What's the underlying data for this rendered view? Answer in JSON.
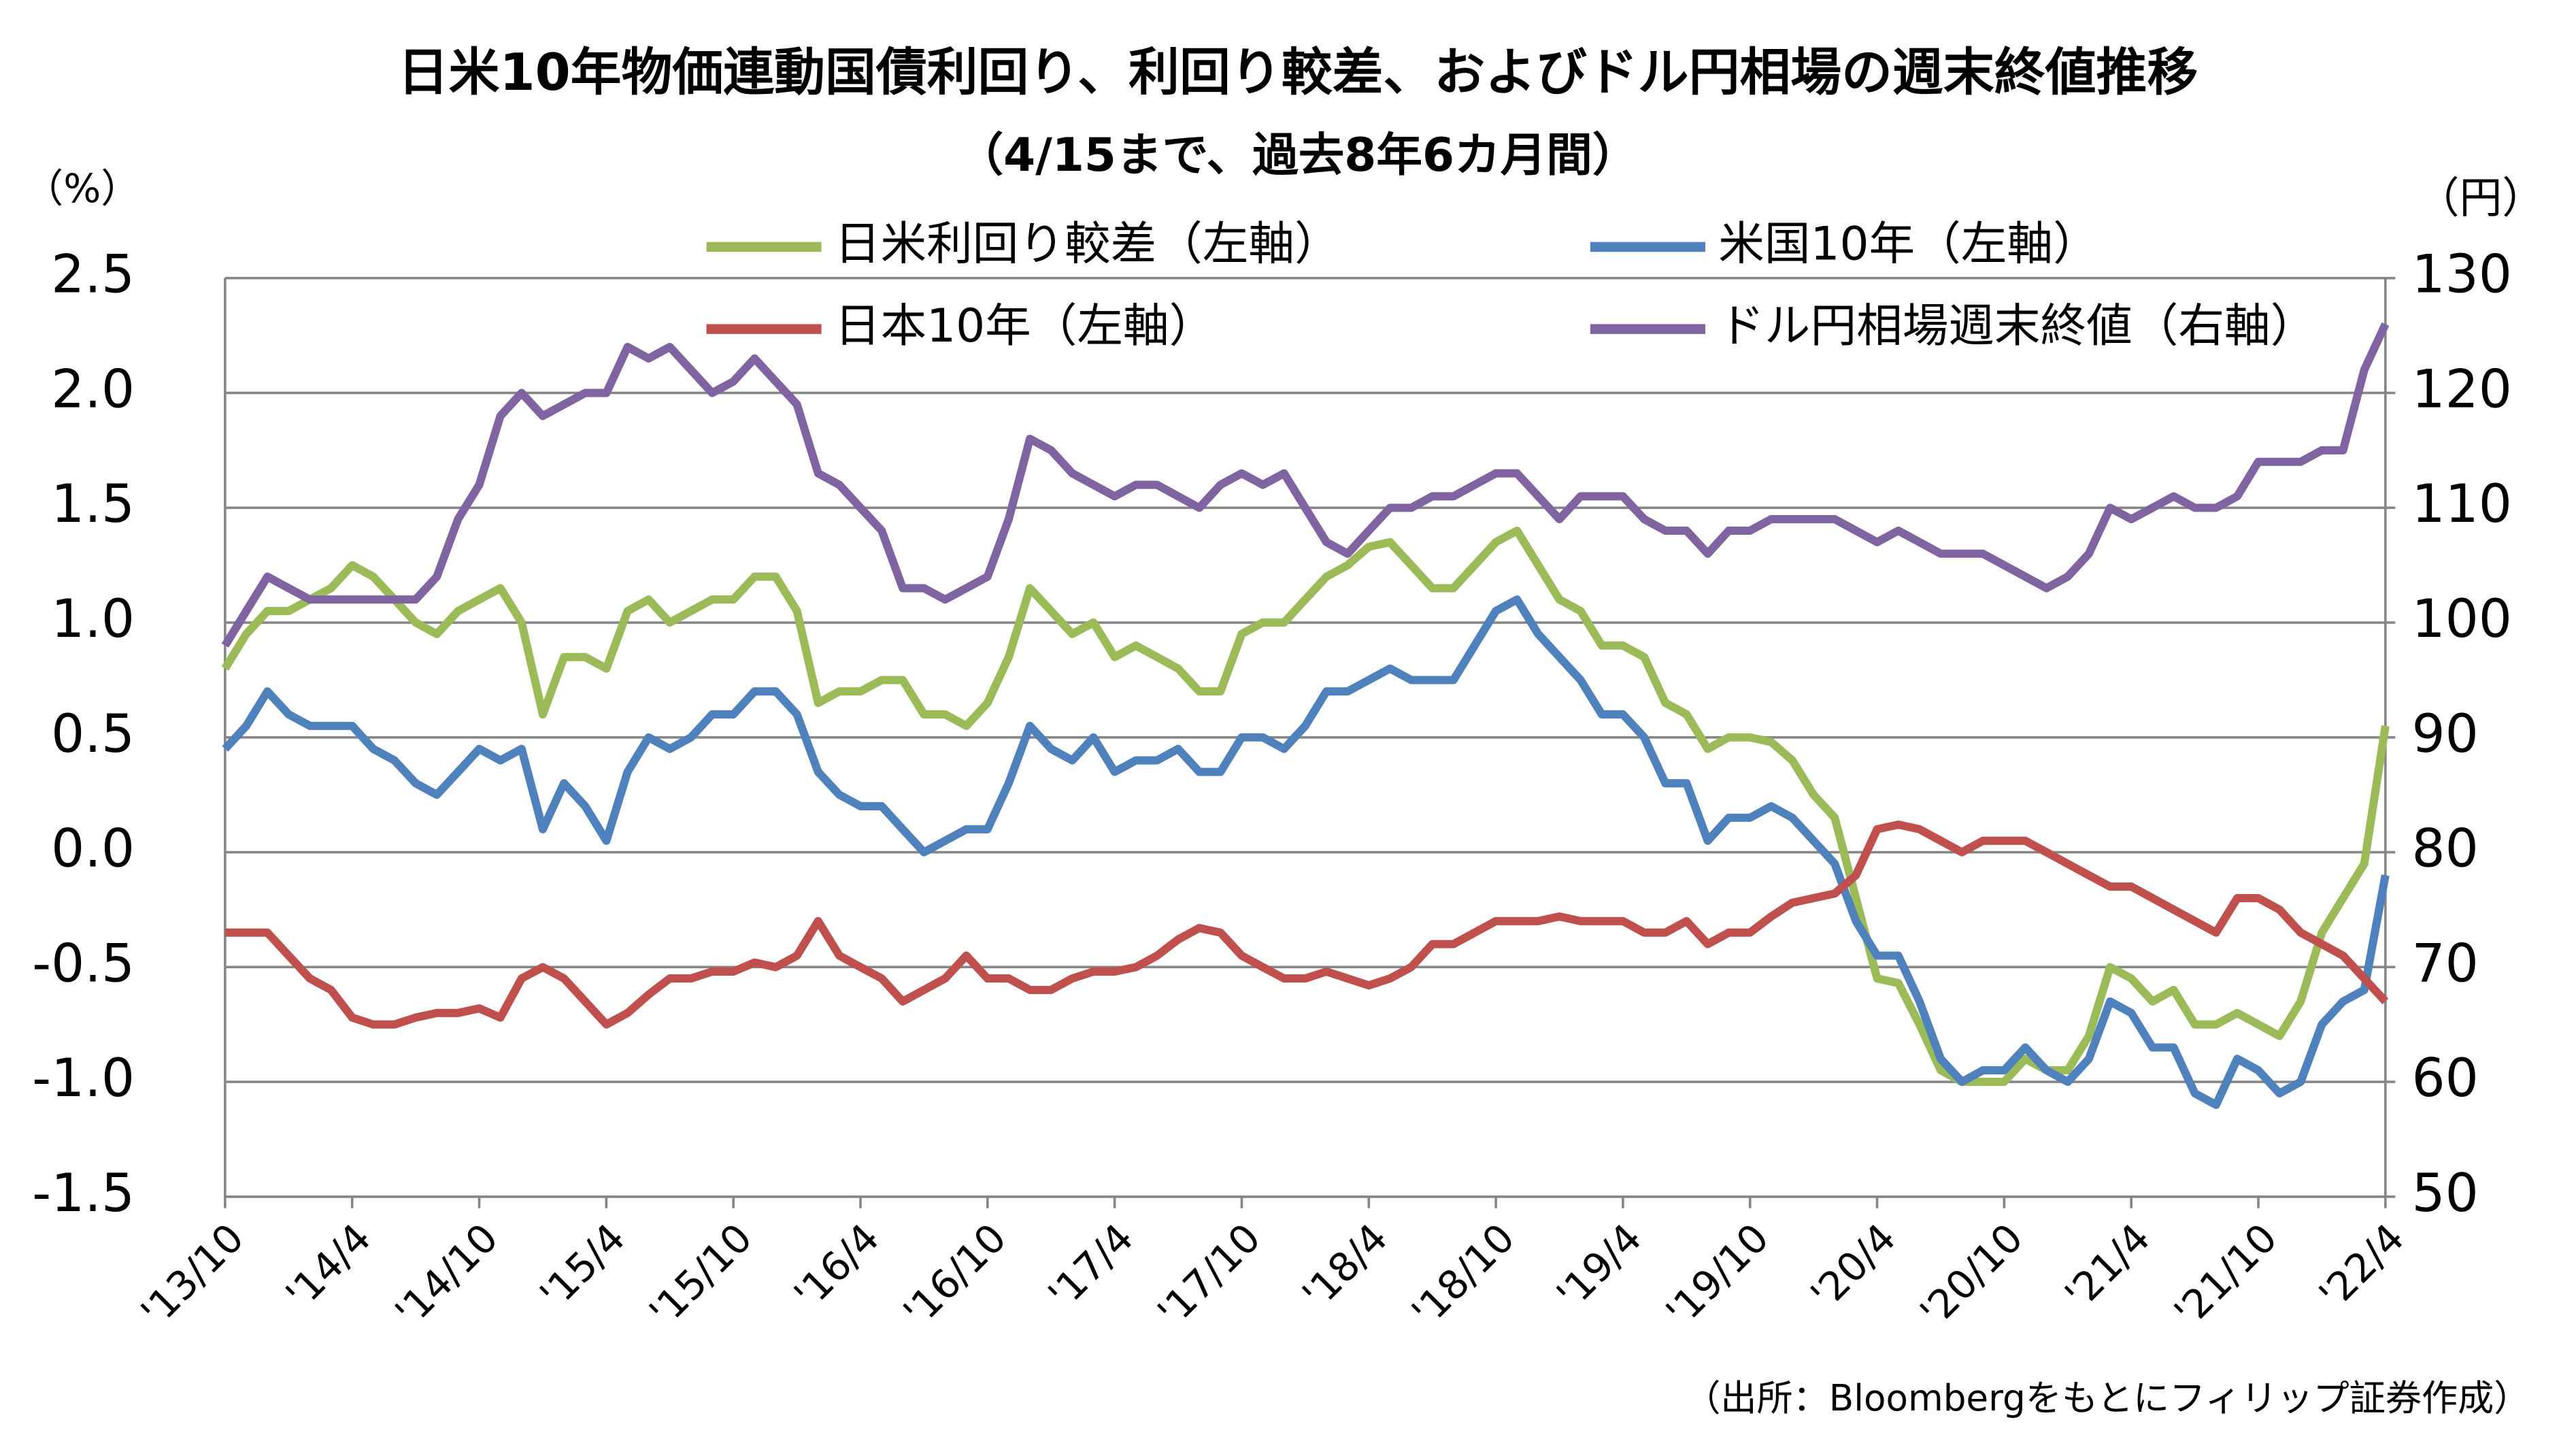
{
  "chart_data": {
    "type": "line",
    "title": "日米10年物価連動国債利回り、利回り較差、およびドル円相場の週末終値推移",
    "subtitle": "（4/15まで、過去8年6カ月間）",
    "y_label": "（%）",
    "y2_label": "（円）",
    "source": "（出所：Bloombergをもとにフィリップ証券作成）",
    "categories": [
      "'13/10",
      null,
      null,
      null,
      null,
      null,
      "'14/4",
      null,
      null,
      null,
      null,
      null,
      "'14/10",
      null,
      null,
      null,
      null,
      null,
      "'15/4",
      null,
      null,
      null,
      null,
      null,
      "'15/10",
      null,
      null,
      null,
      null,
      null,
      "'16/4",
      null,
      null,
      null,
      null,
      null,
      "'16/10",
      null,
      null,
      null,
      null,
      null,
      "'17/4",
      null,
      null,
      null,
      null,
      null,
      "'17/10",
      null,
      null,
      null,
      null,
      null,
      "'18/4",
      null,
      null,
      null,
      null,
      null,
      "'18/10",
      null,
      null,
      null,
      null,
      null,
      "'19/4",
      null,
      null,
      null,
      null,
      null,
      "'19/10",
      null,
      null,
      null,
      null,
      null,
      "'20/4",
      null,
      null,
      null,
      null,
      null,
      "'20/10",
      null,
      null,
      null,
      null,
      null,
      "'21/4",
      null,
      null,
      null,
      null,
      null,
      "'21/10",
      null,
      null,
      null,
      null,
      null,
      "'22/4"
    ],
    "series": [
      {
        "name": "日米利回り較差（左軸）",
        "color": "#9bbb59",
        "values": [
          0.8,
          0.95,
          1.05,
          1.05,
          1.1,
          1.15,
          1.25,
          1.2,
          1.1,
          1.0,
          0.95,
          1.05,
          1.1,
          1.15,
          1.0,
          0.6,
          0.85,
          0.85,
          0.8,
          1.05,
          1.1,
          1.0,
          1.05,
          1.1,
          1.1,
          1.2,
          1.2,
          1.05,
          0.65,
          0.7,
          0.7,
          0.75,
          0.75,
          0.6,
          0.6,
          0.55,
          0.65,
          0.85,
          1.15,
          1.05,
          0.95,
          1.0,
          0.85,
          0.9,
          0.85,
          0.8,
          0.7,
          0.7,
          0.95,
          1.0,
          1.0,
          1.1,
          1.2,
          1.25,
          1.33,
          1.35,
          1.25,
          1.15,
          1.15,
          1.25,
          1.35,
          1.4,
          1.25,
          1.1,
          1.05,
          0.9,
          0.9,
          0.85,
          0.65,
          0.6,
          0.45,
          0.5,
          0.5,
          0.48,
          0.4,
          0.25,
          0.15,
          -0.2,
          -0.55,
          -0.57,
          -0.75,
          -0.95,
          -1.0,
          -1.0,
          -1.0,
          -0.9,
          -0.95,
          -0.95,
          -0.8,
          -0.5,
          -0.55,
          -0.65,
          -0.6,
          -0.75,
          -0.75,
          -0.7,
          -0.75,
          -0.8,
          -0.65,
          -0.35,
          -0.2,
          -0.05,
          0.55
        ]
      },
      {
        "name": "米国10年（左軸）",
        "color": "#4f81bd",
        "values": [
          0.45,
          0.55,
          0.7,
          0.6,
          0.55,
          0.55,
          0.55,
          0.45,
          0.4,
          0.3,
          0.25,
          0.35,
          0.45,
          0.4,
          0.45,
          0.1,
          0.3,
          0.2,
          0.05,
          0.35,
          0.5,
          0.45,
          0.5,
          0.6,
          0.6,
          0.7,
          0.7,
          0.6,
          0.35,
          0.25,
          0.2,
          0.2,
          0.1,
          0.0,
          0.05,
          0.1,
          0.1,
          0.3,
          0.55,
          0.45,
          0.4,
          0.5,
          0.35,
          0.4,
          0.4,
          0.45,
          0.35,
          0.35,
          0.5,
          0.5,
          0.45,
          0.55,
          0.7,
          0.7,
          0.75,
          0.8,
          0.75,
          0.75,
          0.75,
          0.9,
          1.05,
          1.1,
          0.95,
          0.85,
          0.75,
          0.6,
          0.6,
          0.5,
          0.3,
          0.3,
          0.05,
          0.15,
          0.15,
          0.2,
          0.15,
          0.05,
          -0.05,
          -0.3,
          -0.45,
          -0.45,
          -0.65,
          -0.9,
          -1.0,
          -0.95,
          -0.95,
          -0.85,
          -0.95,
          -1.0,
          -0.9,
          -0.65,
          -0.7,
          -0.85,
          -0.85,
          -1.05,
          -1.1,
          -0.9,
          -0.95,
          -1.05,
          -1.0,
          -0.75,
          -0.65,
          -0.6,
          -0.1
        ]
      },
      {
        "name": "日本10年（左軸）",
        "color": "#c0504d",
        "values": [
          -0.35,
          -0.35,
          -0.35,
          -0.45,
          -0.55,
          -0.6,
          -0.72,
          -0.75,
          -0.75,
          -0.72,
          -0.7,
          -0.7,
          -0.68,
          -0.72,
          -0.55,
          -0.5,
          -0.55,
          -0.65,
          -0.75,
          -0.7,
          -0.62,
          -0.55,
          -0.55,
          -0.52,
          -0.52,
          -0.48,
          -0.5,
          -0.45,
          -0.3,
          -0.45,
          -0.5,
          -0.55,
          -0.65,
          -0.6,
          -0.55,
          -0.45,
          -0.55,
          -0.55,
          -0.6,
          -0.6,
          -0.55,
          -0.52,
          -0.52,
          -0.5,
          -0.45,
          -0.38,
          -0.33,
          -0.35,
          -0.45,
          -0.5,
          -0.55,
          -0.55,
          -0.52,
          -0.55,
          -0.58,
          -0.55,
          -0.5,
          -0.4,
          -0.4,
          -0.35,
          -0.3,
          -0.3,
          -0.3,
          -0.28,
          -0.3,
          -0.3,
          -0.3,
          -0.35,
          -0.35,
          -0.3,
          -0.4,
          -0.35,
          -0.35,
          -0.28,
          -0.22,
          -0.2,
          -0.18,
          -0.1,
          0.1,
          0.12,
          0.1,
          0.05,
          0.0,
          0.05,
          0.05,
          0.05,
          0.0,
          -0.05,
          -0.1,
          -0.15,
          -0.15,
          -0.2,
          -0.25,
          -0.3,
          -0.35,
          -0.2,
          -0.2,
          -0.25,
          -0.35,
          -0.4,
          -0.45,
          -0.55,
          -0.65
        ]
      },
      {
        "name": "ドル円相場週末終値（右軸）",
        "color": "#8064a2",
        "axis": "y2",
        "values": [
          98,
          101,
          104,
          103,
          102,
          102,
          102,
          102,
          102,
          102,
          104,
          109,
          112,
          118,
          120,
          118,
          119,
          120,
          120,
          124,
          123,
          124,
          122,
          120,
          121,
          123,
          121,
          119,
          113,
          112,
          110,
          108,
          103,
          103,
          102,
          103,
          104,
          109,
          116,
          115,
          113,
          112,
          111,
          112,
          112,
          111,
          110,
          112,
          113,
          112,
          113,
          110,
          107,
          106,
          108,
          110,
          110,
          111,
          111,
          112,
          113,
          113,
          111,
          109,
          111,
          111,
          111,
          109,
          108,
          108,
          106,
          108,
          108,
          109,
          109,
          109,
          109,
          108,
          107,
          108,
          107,
          106,
          106,
          106,
          105,
          104,
          103,
          104,
          106,
          110,
          109,
          110,
          111,
          110,
          110,
          111,
          114,
          114,
          114,
          115,
          115,
          122,
          126
        ]
      }
    ],
    "ylim": [
      -1.5,
      2.5
    ],
    "yticks": [
      -1.5,
      {
        "value": -1,
        "label": "-1.0"
      },
      -0.5,
      {
        "value": 0,
        "label": "0.0"
      },
      0.5,
      {
        "value": 1,
        "label": "1.0"
      },
      1.5,
      {
        "value": 2,
        "label": "2.0"
      },
      2.5
    ],
    "y2lim": [
      50,
      130
    ],
    "y2ticks": [
      50,
      60,
      70,
      80,
      90,
      100,
      110,
      120,
      130
    ],
    "grid": true,
    "negative_tick_color": "#ff0000",
    "legend": "top"
  }
}
